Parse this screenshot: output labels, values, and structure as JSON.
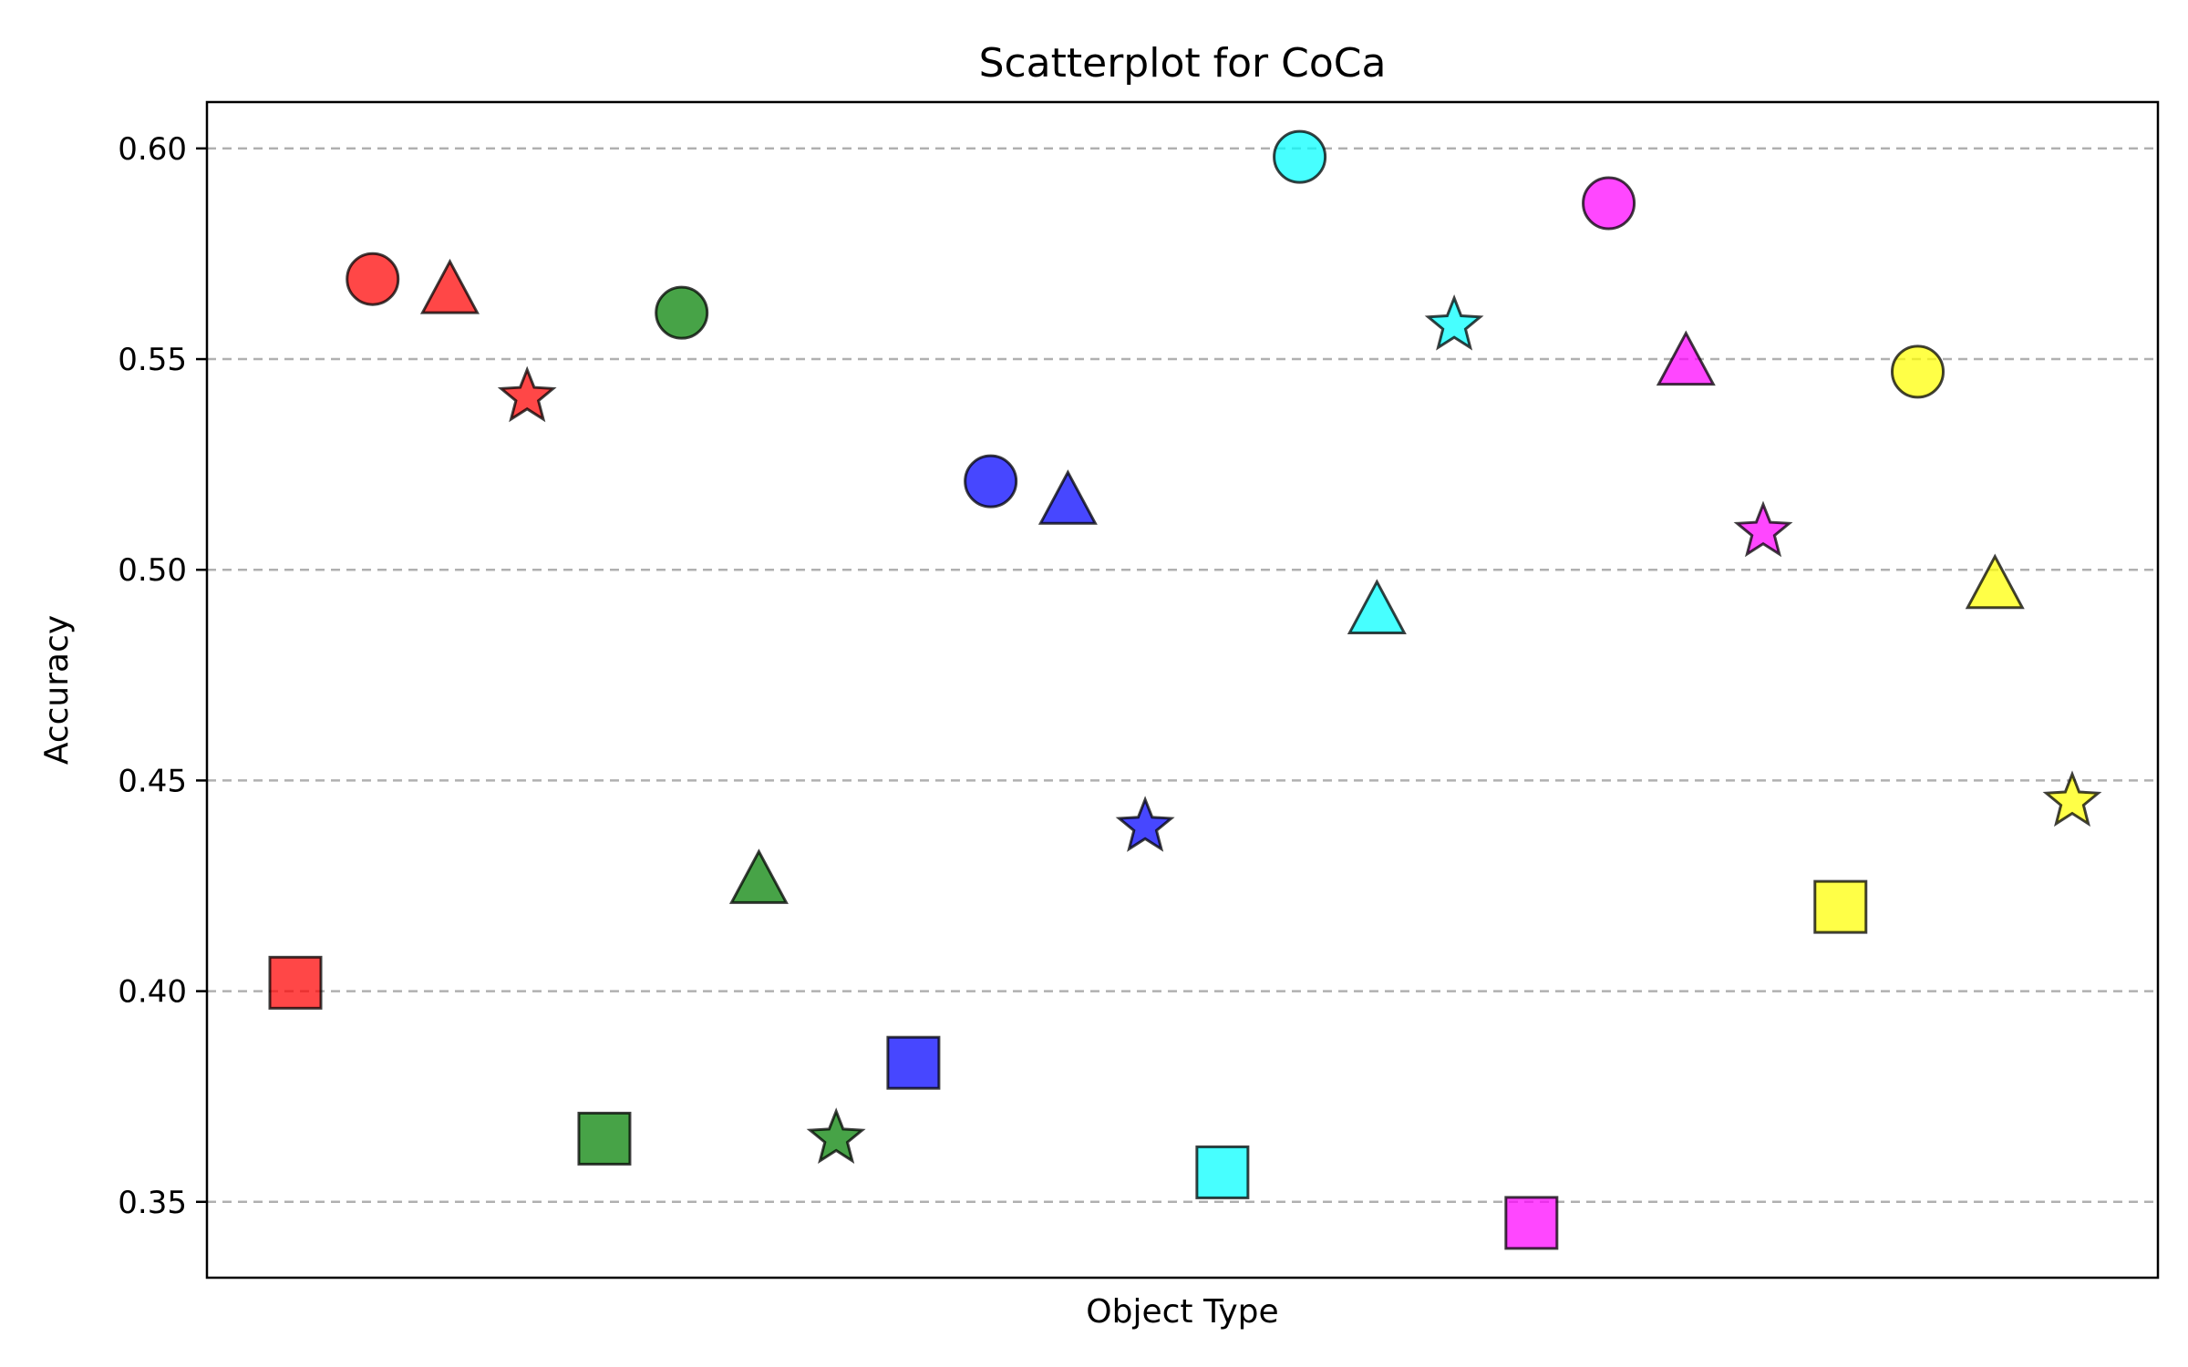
{
  "chart_data": {
    "type": "scatter",
    "title": "Scatterplot for CoCa",
    "xlabel": "Object Type",
    "ylabel": "Accuracy",
    "ylim": [
      0.332,
      0.611
    ],
    "yticks": [
      "0.35",
      "0.40",
      "0.45",
      "0.50",
      "0.55",
      "0.60"
    ],
    "grid": "horizontal dashed",
    "legend": "none",
    "x_ticks_visible": false,
    "colors": {
      "red": "#ff0000",
      "green": "#008000",
      "blue": "#0000ff",
      "cyan": "#00ffff",
      "magenta": "#ff00ff",
      "yellow": "#ffff00"
    },
    "groups": [
      {
        "color": "red",
        "points": [
          {
            "marker": "square",
            "y": 0.402
          },
          {
            "marker": "circle",
            "y": 0.569
          },
          {
            "marker": "triangle",
            "y": 0.566
          },
          {
            "marker": "star",
            "y": 0.541
          }
        ]
      },
      {
        "color": "green",
        "points": [
          {
            "marker": "square",
            "y": 0.365
          },
          {
            "marker": "circle",
            "y": 0.561
          },
          {
            "marker": "triangle",
            "y": 0.426
          },
          {
            "marker": "star",
            "y": 0.365
          }
        ]
      },
      {
        "color": "blue",
        "points": [
          {
            "marker": "square",
            "y": 0.383
          },
          {
            "marker": "circle",
            "y": 0.521
          },
          {
            "marker": "triangle",
            "y": 0.516
          },
          {
            "marker": "star",
            "y": 0.439
          }
        ]
      },
      {
        "color": "cyan",
        "points": [
          {
            "marker": "square",
            "y": 0.357
          },
          {
            "marker": "circle",
            "y": 0.598
          },
          {
            "marker": "triangle",
            "y": 0.49
          },
          {
            "marker": "star",
            "y": 0.558
          }
        ]
      },
      {
        "color": "magenta",
        "points": [
          {
            "marker": "square",
            "y": 0.345
          },
          {
            "marker": "circle",
            "y": 0.587
          },
          {
            "marker": "triangle",
            "y": 0.549
          },
          {
            "marker": "star",
            "y": 0.509
          }
        ]
      },
      {
        "color": "yellow",
        "points": [
          {
            "marker": "square",
            "y": 0.42
          },
          {
            "marker": "circle",
            "y": 0.547
          },
          {
            "marker": "triangle",
            "y": 0.496
          },
          {
            "marker": "star",
            "y": 0.445
          }
        ]
      }
    ]
  }
}
